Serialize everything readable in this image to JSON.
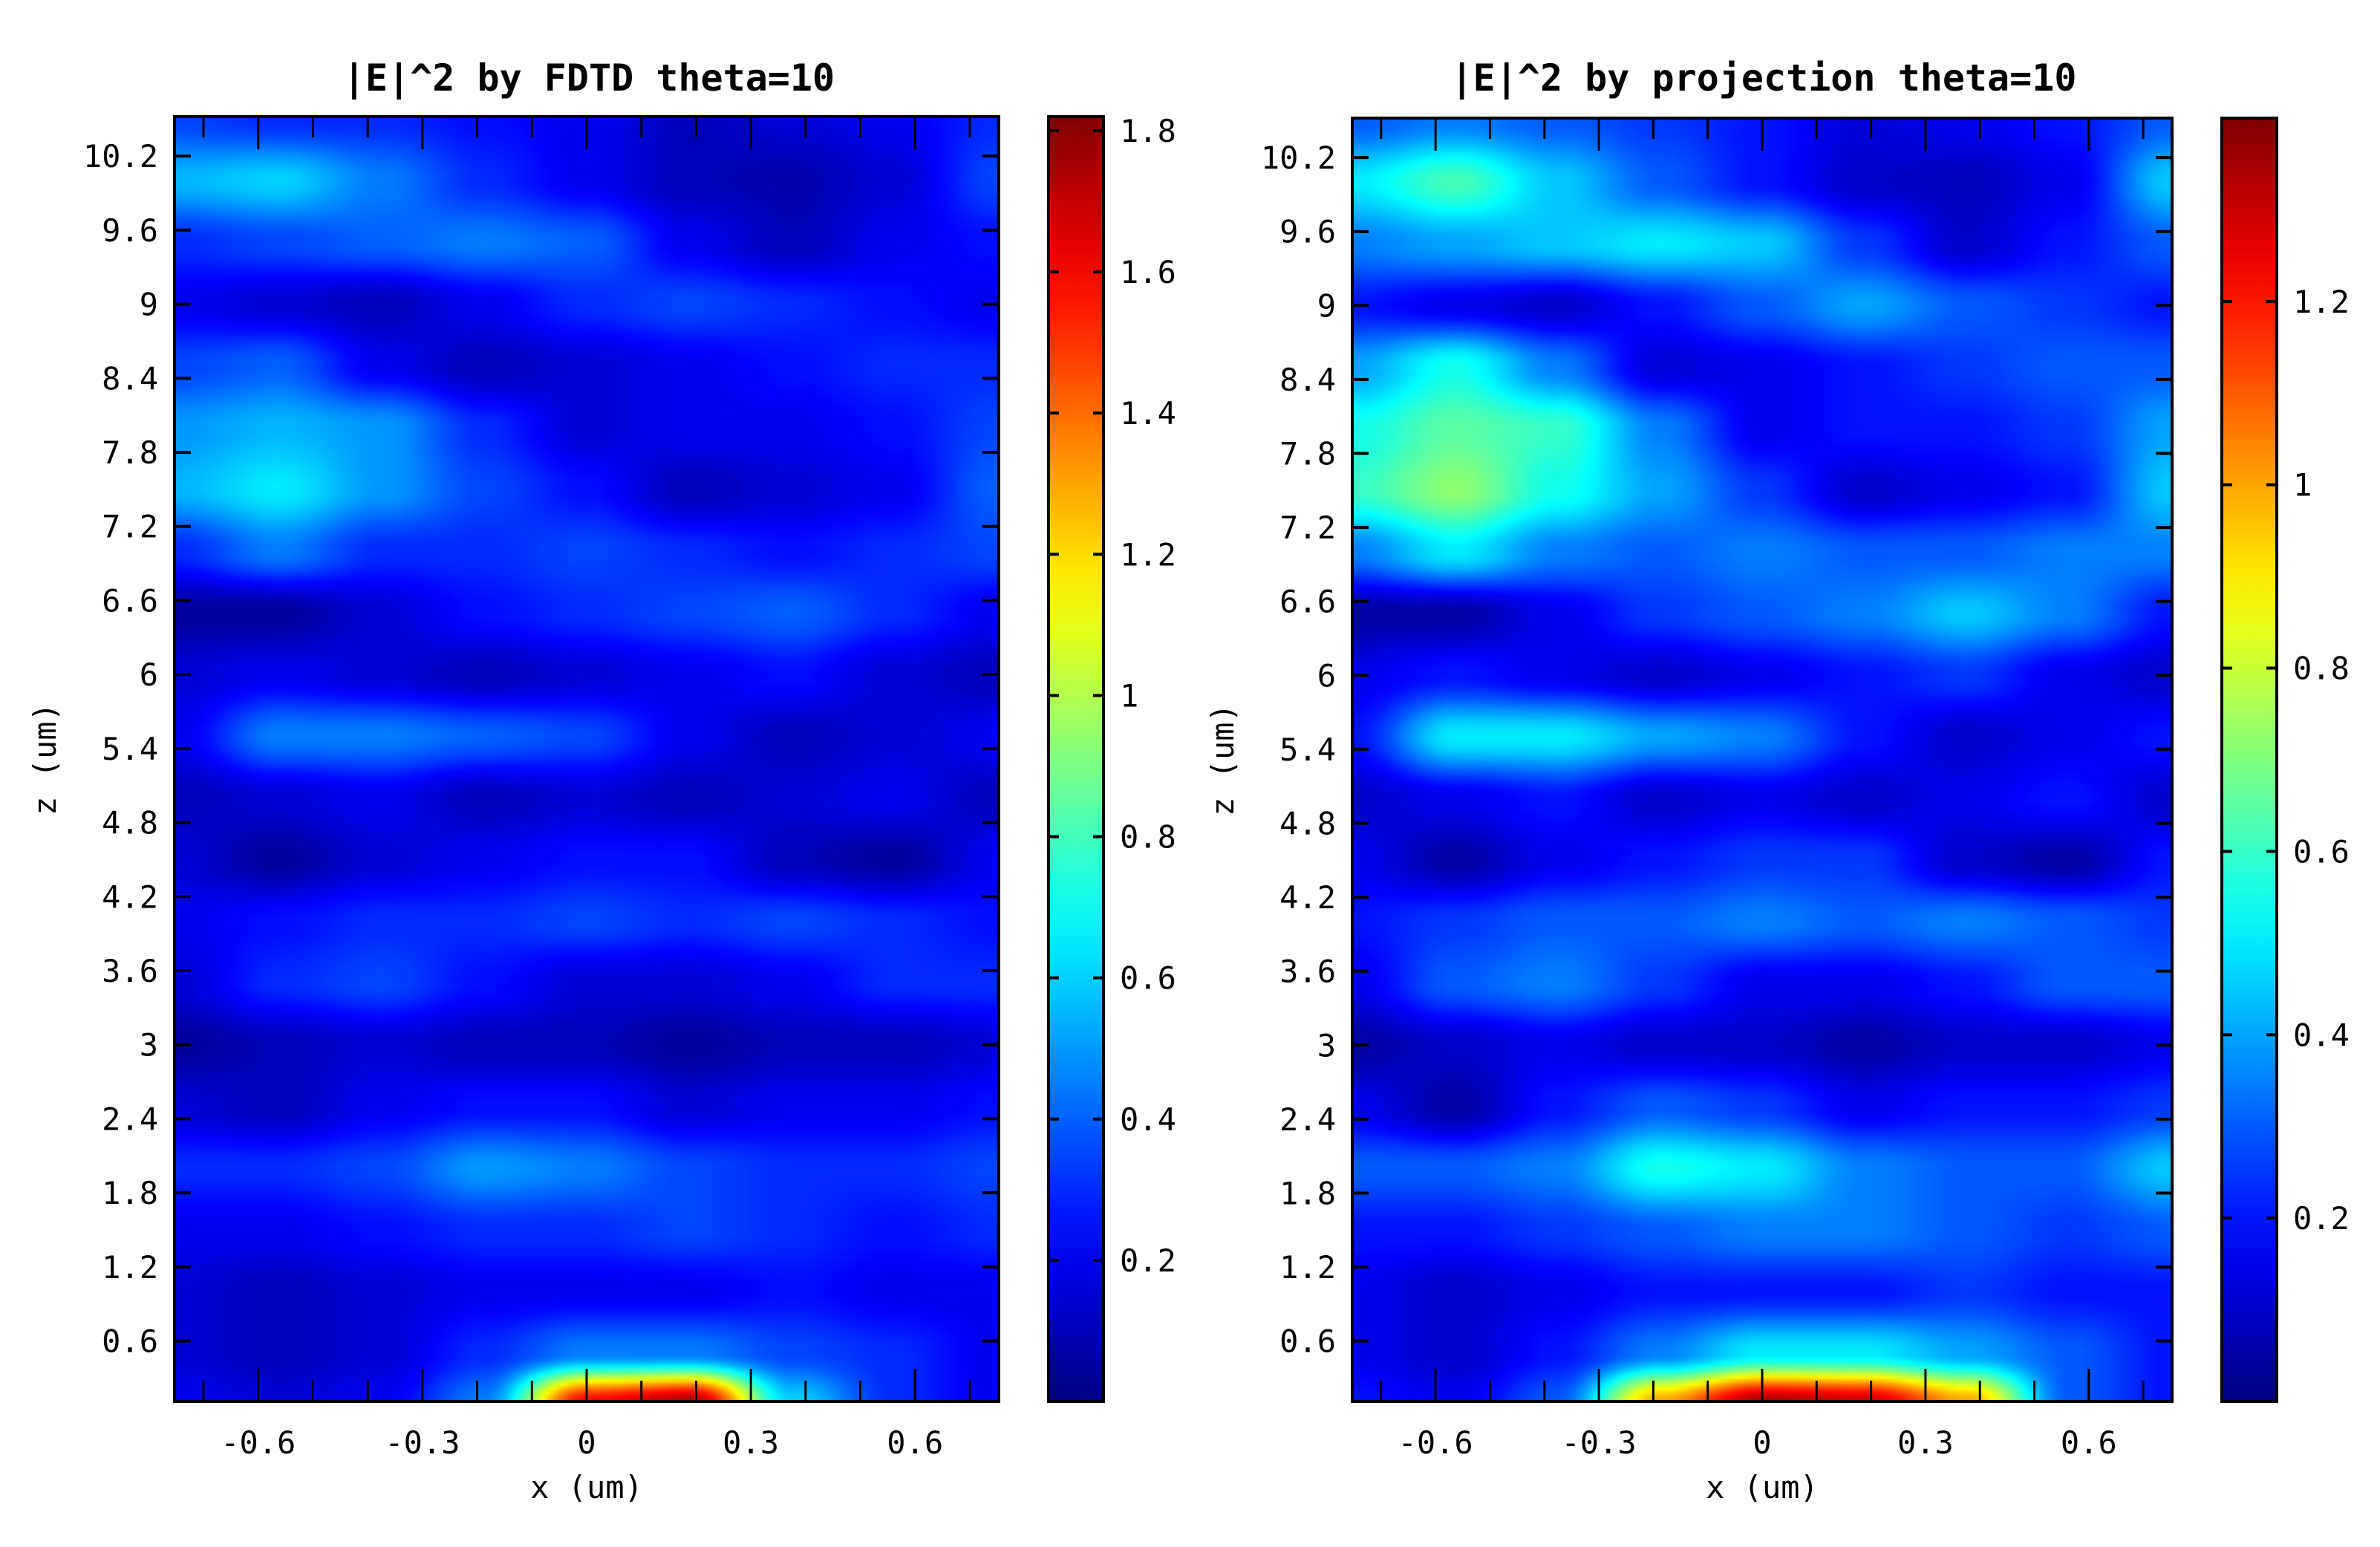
{
  "chart_data": [
    {
      "type": "heatmap",
      "title": "|E|^2 by FDTD theta=10",
      "xlabel": "x (um)",
      "ylabel": "z (um)",
      "xlim": [
        -0.753,
        0.753
      ],
      "ylim": [
        0.11,
        10.52
      ],
      "xticks": [
        -0.6,
        -0.3,
        0,
        0.3,
        0.6
      ],
      "xtick_labels": [
        "-0.6",
        "-0.3",
        "0",
        "0.3",
        "0.6"
      ],
      "yticks": [
        0.6,
        1.2,
        1.8,
        2.4,
        3,
        3.6,
        4.2,
        4.8,
        5.4,
        6,
        6.6,
        7.2,
        7.8,
        8.4,
        9,
        9.6,
        10.2
      ],
      "ytick_labels": [
        "0.6",
        "1.2",
        "1.8",
        "2.4",
        "3",
        "3.6",
        "4.2",
        "4.8",
        "5.4",
        "6",
        "6.6",
        "7.2",
        "7.8",
        "8.4",
        "9",
        "9.6",
        "10.2"
      ],
      "colormap": "jet",
      "clim": [
        0,
        1.82
      ],
      "colorbar_ticks": [
        0.2,
        0.4,
        0.6,
        0.8,
        1,
        1.2,
        1.4,
        1.6,
        1.8
      ],
      "colorbar_tick_labels": [
        "0.2",
        "0.4",
        "0.6",
        "0.8",
        "1",
        "1.2",
        "1.4",
        "1.6",
        "1.8"
      ],
      "x": [
        -0.75,
        -0.5625,
        -0.375,
        -0.1875,
        0,
        0.1875,
        0.375,
        0.5625,
        0.75
      ],
      "z": [
        10.5,
        10.0,
        9.5,
        9.0,
        8.5,
        8.0,
        7.5,
        7.0,
        6.5,
        6.0,
        5.5,
        5.0,
        4.5,
        4.0,
        3.5,
        3.0,
        2.5,
        2.0,
        1.5,
        1.0,
        0.5,
        0.1
      ],
      "values": [
        [
          0.35,
          0.3,
          0.3,
          0.25,
          0.2,
          0.1,
          0.15,
          0.2,
          0.3
        ],
        [
          0.55,
          0.6,
          0.45,
          0.3,
          0.2,
          0.1,
          0.08,
          0.15,
          0.35
        ],
        [
          0.3,
          0.35,
          0.4,
          0.45,
          0.4,
          0.2,
          0.1,
          0.2,
          0.25
        ],
        [
          0.2,
          0.15,
          0.1,
          0.2,
          0.3,
          0.35,
          0.3,
          0.25,
          0.2
        ],
        [
          0.35,
          0.4,
          0.2,
          0.1,
          0.15,
          0.2,
          0.25,
          0.3,
          0.3
        ],
        [
          0.5,
          0.55,
          0.5,
          0.3,
          0.15,
          0.2,
          0.2,
          0.25,
          0.35
        ],
        [
          0.55,
          0.65,
          0.5,
          0.35,
          0.25,
          0.1,
          0.15,
          0.2,
          0.4
        ],
        [
          0.3,
          0.45,
          0.3,
          0.3,
          0.35,
          0.3,
          0.25,
          0.3,
          0.35
        ],
        [
          0.05,
          0.05,
          0.15,
          0.25,
          0.3,
          0.35,
          0.4,
          0.3,
          0.2
        ],
        [
          0.15,
          0.2,
          0.15,
          0.1,
          0.15,
          0.2,
          0.25,
          0.15,
          0.1
        ],
        [
          0.2,
          0.45,
          0.45,
          0.4,
          0.35,
          0.2,
          0.1,
          0.15,
          0.2
        ],
        [
          0.1,
          0.15,
          0.2,
          0.1,
          0.15,
          0.1,
          0.15,
          0.2,
          0.1
        ],
        [
          0.15,
          0.05,
          0.15,
          0.2,
          0.25,
          0.25,
          0.1,
          0.05,
          0.2
        ],
        [
          0.2,
          0.25,
          0.3,
          0.3,
          0.35,
          0.3,
          0.35,
          0.3,
          0.25
        ],
        [
          0.15,
          0.3,
          0.35,
          0.25,
          0.15,
          0.15,
          0.2,
          0.3,
          0.3
        ],
        [
          0.05,
          0.1,
          0.15,
          0.1,
          0.1,
          0.05,
          0.1,
          0.1,
          0.15
        ],
        [
          0.15,
          0.1,
          0.2,
          0.25,
          0.25,
          0.15,
          0.2,
          0.2,
          0.25
        ],
        [
          0.3,
          0.3,
          0.35,
          0.5,
          0.45,
          0.35,
          0.3,
          0.3,
          0.35
        ],
        [
          0.2,
          0.2,
          0.25,
          0.3,
          0.3,
          0.35,
          0.3,
          0.25,
          0.3
        ],
        [
          0.15,
          0.1,
          0.15,
          0.2,
          0.2,
          0.2,
          0.25,
          0.2,
          0.2
        ],
        [
          0.15,
          0.1,
          0.15,
          0.3,
          0.45,
          0.45,
          0.35,
          0.3,
          0.2
        ],
        [
          0.2,
          0.15,
          0.2,
          0.45,
          1.6,
          1.75,
          0.6,
          0.3,
          0.2
        ]
      ]
    },
    {
      "type": "heatmap",
      "title": "|E|^2 by projection theta=10",
      "xlabel": "x (um)",
      "ylabel": "z (um)",
      "xlim": [
        -0.753,
        0.753
      ],
      "ylim": [
        0.11,
        10.52
      ],
      "xticks": [
        -0.6,
        -0.3,
        0,
        0.3,
        0.6
      ],
      "xtick_labels": [
        "-0.6",
        "-0.3",
        "0",
        "0.3",
        "0.6"
      ],
      "yticks": [
        0.6,
        1.2,
        1.8,
        2.4,
        3,
        3.6,
        4.2,
        4.8,
        5.4,
        6,
        6.6,
        7.2,
        7.8,
        8.4,
        9,
        9.6,
        10.2
      ],
      "ytick_labels": [
        "0.6",
        "1.2",
        "1.8",
        "2.4",
        "3",
        "3.6",
        "4.2",
        "4.8",
        "5.4",
        "6",
        "6.6",
        "7.2",
        "7.8",
        "8.4",
        "9",
        "9.6",
        "10.2"
      ],
      "colormap": "jet",
      "clim": [
        0,
        1.4
      ],
      "colorbar_ticks": [
        0.2,
        0.4,
        0.6,
        0.8,
        1,
        1.2
      ],
      "colorbar_tick_labels": [
        "0.2",
        "0.4",
        "0.6",
        "0.8",
        "1",
        "1.2"
      ],
      "x": [
        -0.75,
        -0.5625,
        -0.375,
        -0.1875,
        0,
        0.1875,
        0.375,
        0.5625,
        0.75
      ],
      "z": [
        10.5,
        10.0,
        9.5,
        9.0,
        8.5,
        8.0,
        7.5,
        7.0,
        6.5,
        6.0,
        5.5,
        5.0,
        4.5,
        4.0,
        3.5,
        3.0,
        2.5,
        2.0,
        1.5,
        1.0,
        0.5,
        0.1
      ],
      "values": [
        [
          0.3,
          0.35,
          0.3,
          0.25,
          0.2,
          0.12,
          0.15,
          0.2,
          0.3
        ],
        [
          0.5,
          0.62,
          0.45,
          0.3,
          0.2,
          0.1,
          0.08,
          0.15,
          0.45
        ],
        [
          0.35,
          0.4,
          0.45,
          0.5,
          0.45,
          0.25,
          0.1,
          0.2,
          0.3
        ],
        [
          0.2,
          0.15,
          0.1,
          0.2,
          0.3,
          0.4,
          0.3,
          0.25,
          0.2
        ],
        [
          0.4,
          0.55,
          0.35,
          0.12,
          0.15,
          0.2,
          0.25,
          0.3,
          0.3
        ],
        [
          0.55,
          0.65,
          0.6,
          0.35,
          0.15,
          0.2,
          0.2,
          0.25,
          0.4
        ],
        [
          0.6,
          0.72,
          0.55,
          0.4,
          0.25,
          0.1,
          0.15,
          0.2,
          0.45
        ],
        [
          0.35,
          0.5,
          0.35,
          0.3,
          0.35,
          0.3,
          0.3,
          0.35,
          0.35
        ],
        [
          0.05,
          0.05,
          0.15,
          0.25,
          0.3,
          0.35,
          0.45,
          0.35,
          0.2
        ],
        [
          0.15,
          0.2,
          0.15,
          0.1,
          0.15,
          0.2,
          0.25,
          0.15,
          0.1
        ],
        [
          0.2,
          0.5,
          0.5,
          0.4,
          0.35,
          0.2,
          0.1,
          0.15,
          0.2
        ],
        [
          0.1,
          0.15,
          0.2,
          0.1,
          0.15,
          0.1,
          0.15,
          0.2,
          0.1
        ],
        [
          0.15,
          0.05,
          0.15,
          0.2,
          0.25,
          0.25,
          0.1,
          0.05,
          0.2
        ],
        [
          0.2,
          0.25,
          0.3,
          0.3,
          0.35,
          0.3,
          0.35,
          0.3,
          0.25
        ],
        [
          0.15,
          0.3,
          0.35,
          0.25,
          0.15,
          0.15,
          0.2,
          0.3,
          0.3
        ],
        [
          0.05,
          0.1,
          0.15,
          0.1,
          0.1,
          0.05,
          0.1,
          0.1,
          0.15
        ],
        [
          0.15,
          0.05,
          0.2,
          0.3,
          0.25,
          0.15,
          0.2,
          0.2,
          0.25
        ],
        [
          0.3,
          0.3,
          0.35,
          0.55,
          0.5,
          0.35,
          0.3,
          0.3,
          0.45
        ],
        [
          0.2,
          0.2,
          0.25,
          0.3,
          0.35,
          0.35,
          0.3,
          0.25,
          0.3
        ],
        [
          0.15,
          0.1,
          0.15,
          0.2,
          0.2,
          0.2,
          0.25,
          0.2,
          0.2
        ],
        [
          0.15,
          0.1,
          0.2,
          0.35,
          0.5,
          0.5,
          0.4,
          0.3,
          0.2
        ],
        [
          0.2,
          0.15,
          0.3,
          1.0,
          1.35,
          1.3,
          1.0,
          0.3,
          0.2
        ]
      ]
    }
  ]
}
